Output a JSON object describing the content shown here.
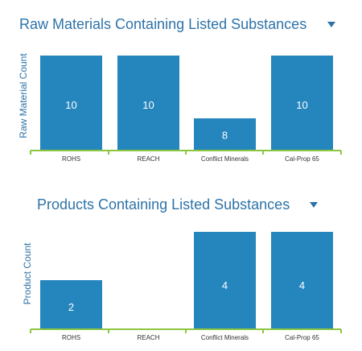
{
  "chart_data": [
    {
      "type": "bar",
      "title": "Raw Materials Containing Listed Substances",
      "ylabel": "Raw Material Count",
      "xlabel": "",
      "categories": [
        "ROHS",
        "REACH",
        "Conflict Minerals",
        "Cal-Prop 65"
      ],
      "values": [
        10,
        10,
        8,
        10
      ],
      "ylim": [
        7,
        10
      ],
      "grid": false,
      "legend": "none",
      "bar_color": "#2585bd",
      "axis_color": "#8cc63f"
    },
    {
      "type": "bar",
      "title": "Products Containing Listed Substances",
      "ylabel": "Product Count",
      "xlabel": "",
      "categories": [
        "ROHS",
        "REACH",
        "Conflict Minerals",
        "Cal-Prop 65"
      ],
      "values": [
        2,
        null,
        4,
        4
      ],
      "ylim": [
        0,
        4
      ],
      "grid": false,
      "legend": "none",
      "bar_color": "#2585bd",
      "axis_color": "#8cc63f"
    }
  ],
  "dropdown_icon": "caret-down-icon",
  "title_color": "#2e73a8"
}
